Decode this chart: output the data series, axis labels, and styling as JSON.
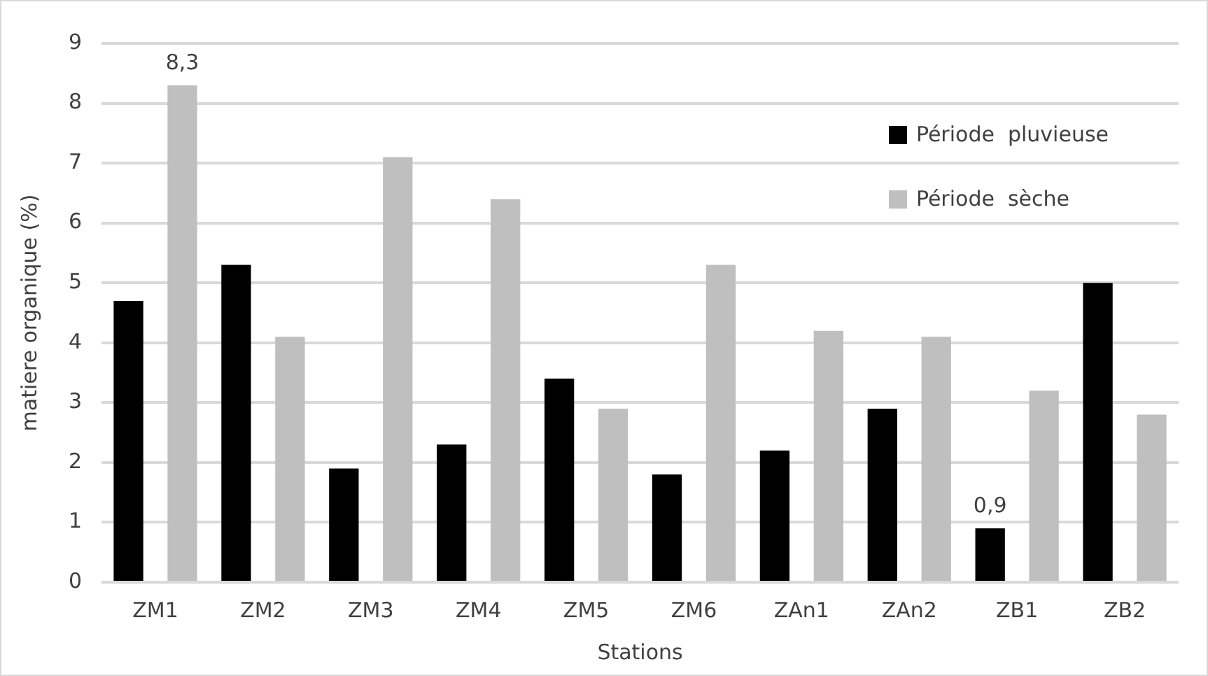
{
  "chart_data": {
    "type": "bar",
    "xlabel": "Stations",
    "ylabel": "matiere organique (%)",
    "categories": [
      "ZM1",
      "ZM2",
      "ZM3",
      "ZM4",
      "ZM5",
      "ZM6",
      "ZAn1",
      "ZAn2",
      "ZB1",
      "ZB2"
    ],
    "series": [
      {
        "name": "Période  pluvieuse",
        "color": "#000000",
        "values": [
          4.7,
          5.3,
          1.9,
          2.3,
          3.4,
          1.8,
          2.2,
          2.9,
          0.9,
          5.0
        ],
        "value_labels": [
          null,
          null,
          null,
          null,
          null,
          null,
          null,
          null,
          "0,9",
          null
        ]
      },
      {
        "name": "Période  sèche",
        "color": "#bfbfbf",
        "values": [
          8.3,
          4.1,
          7.1,
          6.4,
          2.9,
          5.3,
          4.2,
          4.1,
          3.2,
          2.8
        ],
        "value_labels": [
          "8,3",
          null,
          null,
          null,
          null,
          null,
          null,
          null,
          null,
          null
        ]
      }
    ],
    "ylim": [
      0,
      9
    ],
    "yticks": [
      0,
      1,
      2,
      3,
      4,
      5,
      6,
      7,
      8,
      9
    ],
    "grid": "y",
    "legend": "top right"
  }
}
